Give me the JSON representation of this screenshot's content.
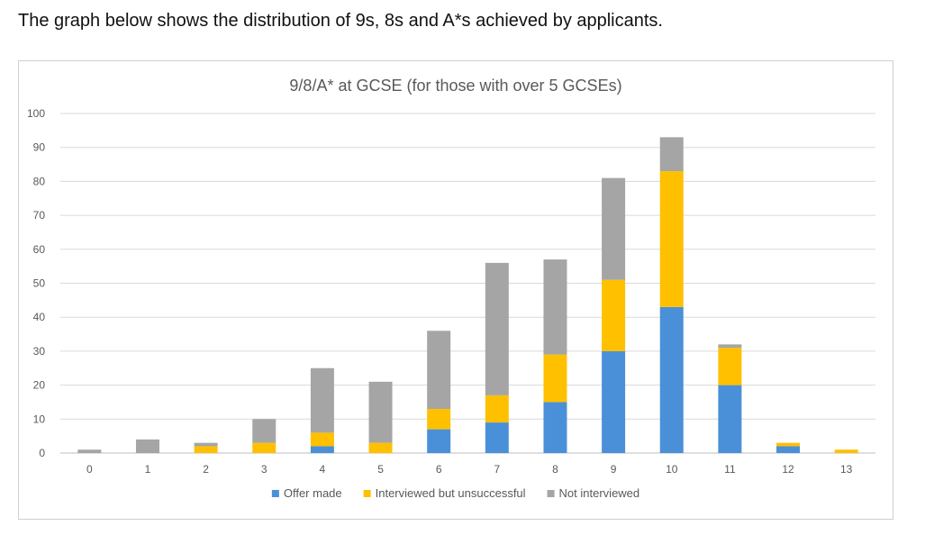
{
  "intro_text": "The graph below shows the distribution of 9s, 8s and A*s achieved by applicants.",
  "chart_data": {
    "type": "bar",
    "stacked": true,
    "title": "9/8/A* at GCSE (for those with over 5 GCSEs)",
    "xlabel": "",
    "ylabel": "",
    "categories": [
      "0",
      "1",
      "2",
      "3",
      "4",
      "5",
      "6",
      "7",
      "8",
      "9",
      "10",
      "11",
      "12",
      "13"
    ],
    "ylim": [
      0,
      100
    ],
    "yticks": [
      0,
      10,
      20,
      30,
      40,
      50,
      60,
      70,
      80,
      90,
      100
    ],
    "grid": true,
    "legend_position": "bottom",
    "series": [
      {
        "name": "Offer made",
        "color": "#4a90d9",
        "values": [
          0,
          0,
          0,
          0,
          2,
          0,
          7,
          9,
          15,
          30,
          43,
          20,
          2,
          0
        ]
      },
      {
        "name": "Interviewed but unsuccessful",
        "color": "#ffc000",
        "values": [
          0,
          0,
          2,
          3,
          4,
          3,
          6,
          8,
          14,
          21,
          40,
          11,
          1,
          1
        ]
      },
      {
        "name": "Not interviewed",
        "color": "#a5a5a5",
        "values": [
          1,
          4,
          1,
          7,
          19,
          18,
          23,
          39,
          28,
          30,
          10,
          1,
          0,
          0
        ]
      }
    ]
  }
}
